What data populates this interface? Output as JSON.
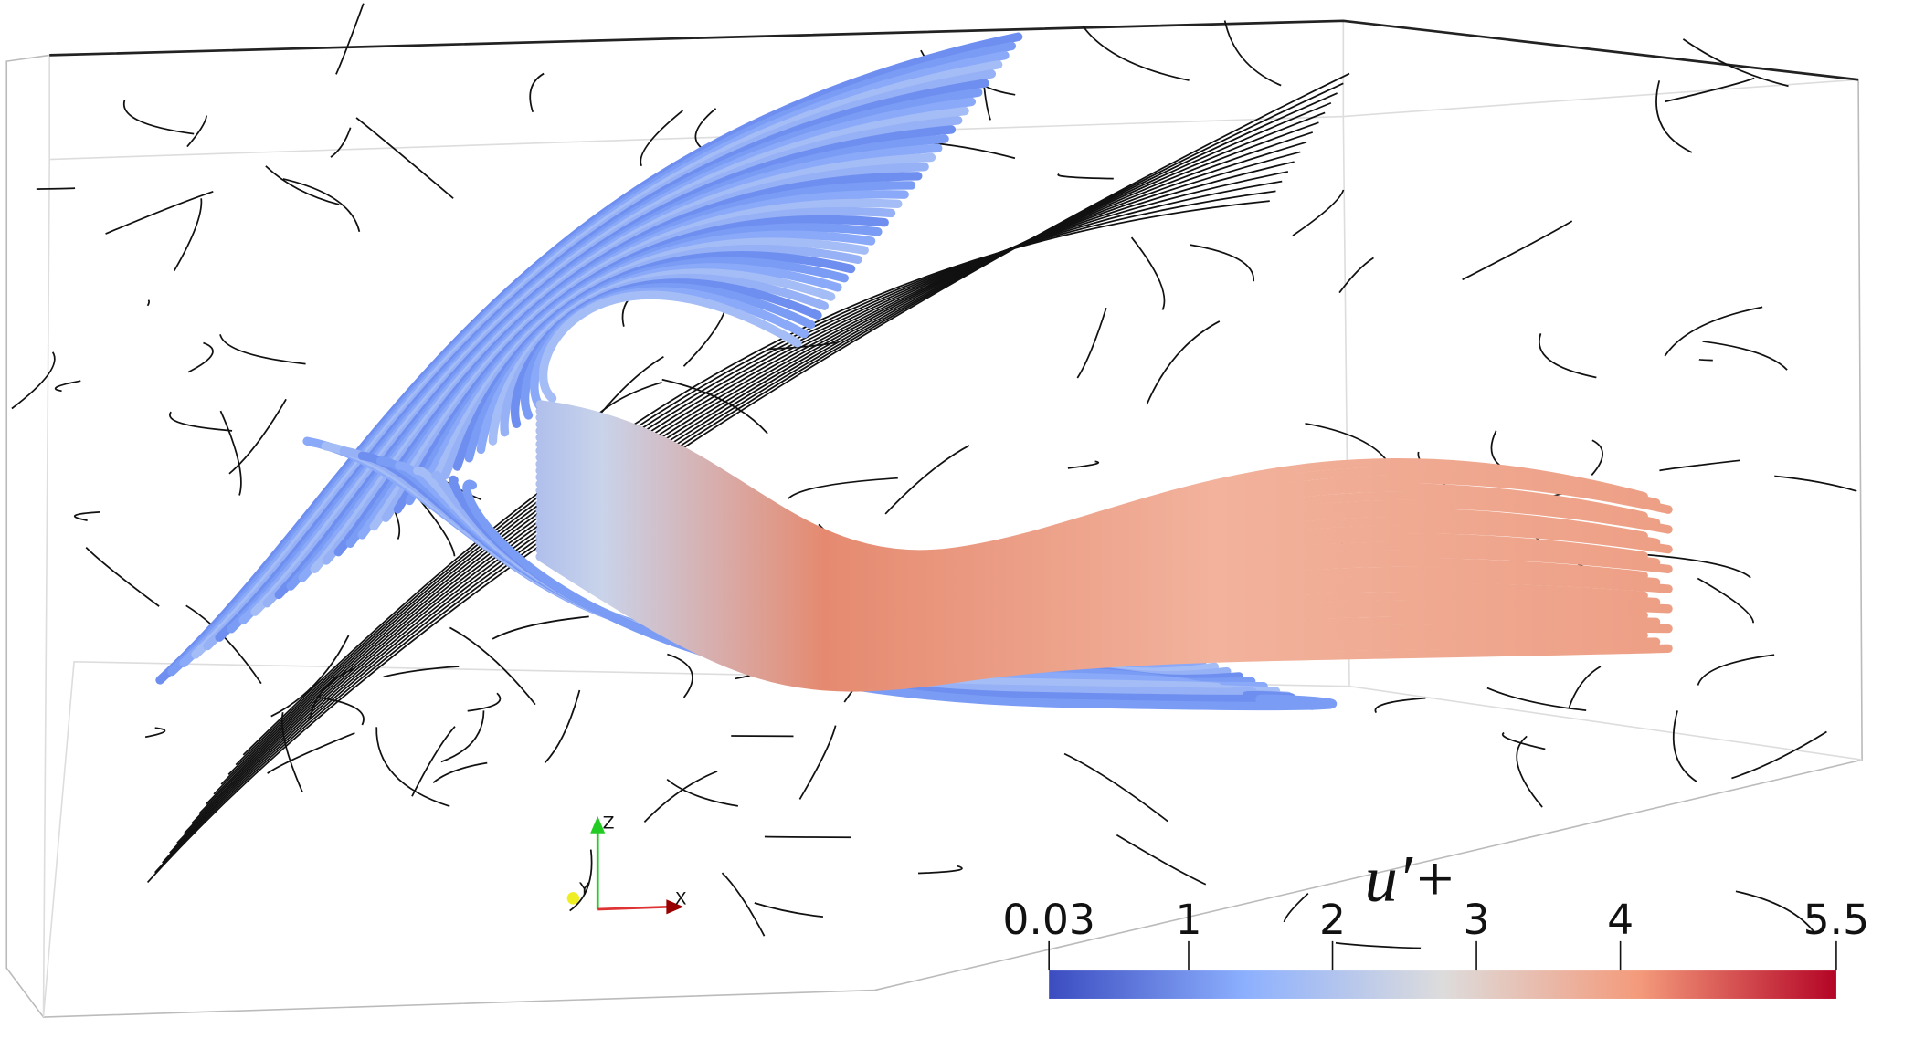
{
  "colorbar": {
    "label": "u′+",
    "range": [
      0.03,
      5.5
    ],
    "ticks": [
      0.03,
      1,
      2,
      3,
      4,
      5.5
    ],
    "colors": [
      "#3b4cc0",
      "#8db0fe",
      "#dddcdc",
      "#f49a7b",
      "#b40426"
    ]
  },
  "axes_triad": {
    "z": "Z",
    "y": "Y",
    "x": "X"
  }
}
